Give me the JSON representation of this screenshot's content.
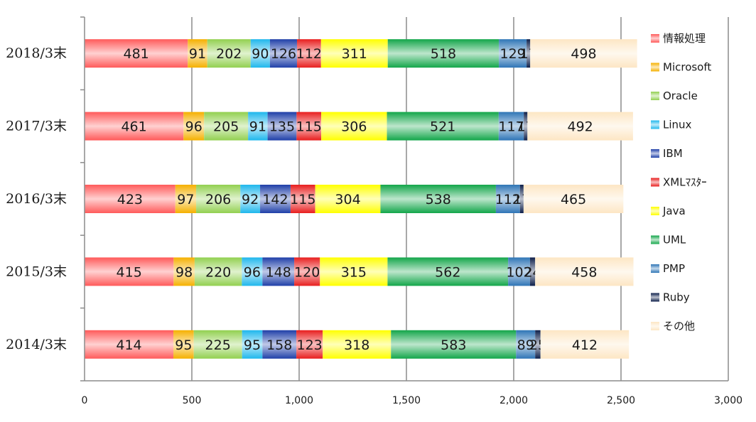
{
  "chart_data": {
    "type": "bar",
    "orientation": "horizontal",
    "stacked": true,
    "title": "",
    "xlabel": "",
    "ylabel": "",
    "xlim": [
      0,
      3000
    ],
    "xticks": [
      0,
      500,
      1000,
      1500,
      2000,
      2500,
      3000
    ],
    "xtick_labels": [
      "0",
      "500",
      "1,000",
      "1,500",
      "2,000",
      "2,500",
      "3,000"
    ],
    "grid": true,
    "legend_position": "right",
    "categories": [
      "2018/3末",
      "2017/3末",
      "2016/3末",
      "2015/3末",
      "2014/3末"
    ],
    "series": [
      {
        "name": "情報処理",
        "color": "#ff5a5a",
        "values": [
          481,
          461,
          423,
          415,
          414
        ]
      },
      {
        "name": "Microsoft",
        "color": "#f5b000",
        "values": [
          91,
          96,
          97,
          98,
          95
        ]
      },
      {
        "name": "Oracle",
        "color": "#92d050",
        "values": [
          202,
          205,
          206,
          220,
          225
        ]
      },
      {
        "name": "Linux",
        "color": "#1fb7ec",
        "values": [
          90,
          91,
          92,
          96,
          95
        ]
      },
      {
        "name": "IBM",
        "color": "#1f3fa8",
        "values": [
          126,
          135,
          142,
          148,
          158
        ]
      },
      {
        "name": "XMLﾏｽﾀｰ",
        "color": "#e81e1e",
        "values": [
          112,
          115,
          115,
          120,
          123
        ]
      },
      {
        "name": "Java",
        "color": "#ffff00",
        "values": [
          311,
          306,
          304,
          315,
          318
        ]
      },
      {
        "name": "UML",
        "color": "#13a64a",
        "values": [
          518,
          521,
          538,
          562,
          583
        ]
      },
      {
        "name": "PMP",
        "color": "#2e75b6",
        "values": [
          129,
          117,
          112,
          102,
          89
        ]
      },
      {
        "name": "Ruby",
        "color": "#0d1f4a",
        "values": [
          17,
          17,
          17,
          24,
          25
        ]
      },
      {
        "name": "その他",
        "color": "#fde6c4",
        "values": [
          498,
          492,
          465,
          458,
          412
        ]
      }
    ]
  }
}
